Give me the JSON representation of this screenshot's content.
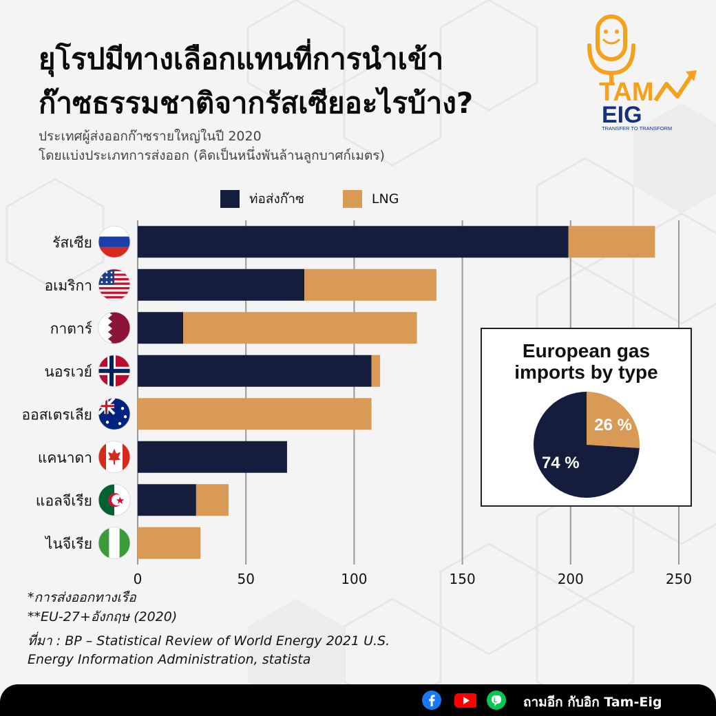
{
  "header": {
    "title_line1": "ยุโรปมีทางเลือกแทนที่การนำเข้า",
    "title_line2": "ก๊าซธรรมชาติจากรัสเซียอะไรบ้าง?",
    "subtitle_line1": "ประเทศผู้ส่งออกก๊าซรายใหญ่ในปี 2020",
    "subtitle_line2": "โดยแบ่งประเภทการส่งออก (คิดเป็นหนึ่งพันล้านลูกบาศก์เมตร)"
  },
  "logo": {
    "text_top": "TAM",
    "text_bottom": "EIG",
    "tagline": "TRANSFER TO TRANSFORM",
    "icon": "microphone-smile-icon",
    "color_orange": "#f5a11c",
    "color_navy": "#16307a"
  },
  "colors": {
    "pipeline": "#141d3b",
    "lng": "#d89a55",
    "grid": "#9a9a9a"
  },
  "chart_data": [
    {
      "type": "bar",
      "orientation": "horizontal",
      "stacked": true,
      "categories": [
        "รัสเซีย",
        "อเมริกา",
        "กาตาร์",
        "นอรเวย์",
        "ออสเตรเลีย",
        "แคนาดา",
        "แอลจีเรีย",
        "ไนจีเรีย"
      ],
      "category_flags": [
        "russia-flag-icon",
        "usa-flag-icon",
        "qatar-flag-icon",
        "norway-flag-icon",
        "australia-flag-icon",
        "canada-flag-icon",
        "algeria-flag-icon",
        "nigeria-flag-icon"
      ],
      "series": [
        {
          "name": "ท่อส่งก๊าซ",
          "color": "#141d3b",
          "values": [
            199,
            77,
            21,
            108,
            0,
            69,
            27,
            0
          ]
        },
        {
          "name": "LNG",
          "color": "#d89a55",
          "values": [
            40,
            61,
            108,
            4,
            108,
            0,
            15,
            29
          ]
        }
      ],
      "xlim": [
        0,
        250
      ],
      "xticks": [
        0,
        50,
        100,
        150,
        200,
        250
      ],
      "grid": true,
      "legend": "top"
    },
    {
      "type": "pie",
      "title_line1": "European gas",
      "title_line2": "imports by type",
      "slices": [
        {
          "label": "74 %",
          "value": 74,
          "color": "#141d3b"
        },
        {
          "label": "26 %",
          "value": 26,
          "color": "#d89a55"
        }
      ]
    }
  ],
  "notes": {
    "note1": "*การส่งออกทางเรือ",
    "note2": "**EU-27+อังกฤษ (2020)",
    "source_line1": "ที่มา : BP – Statistical Review of World Energy 2021 U.S.",
    "source_line2": "Energy Information Administration, statista"
  },
  "footer": {
    "icons": [
      "facebook-icon",
      "youtube-icon",
      "line-icon"
    ],
    "text": "ถามอีก กับอิก Tam-Eig"
  }
}
